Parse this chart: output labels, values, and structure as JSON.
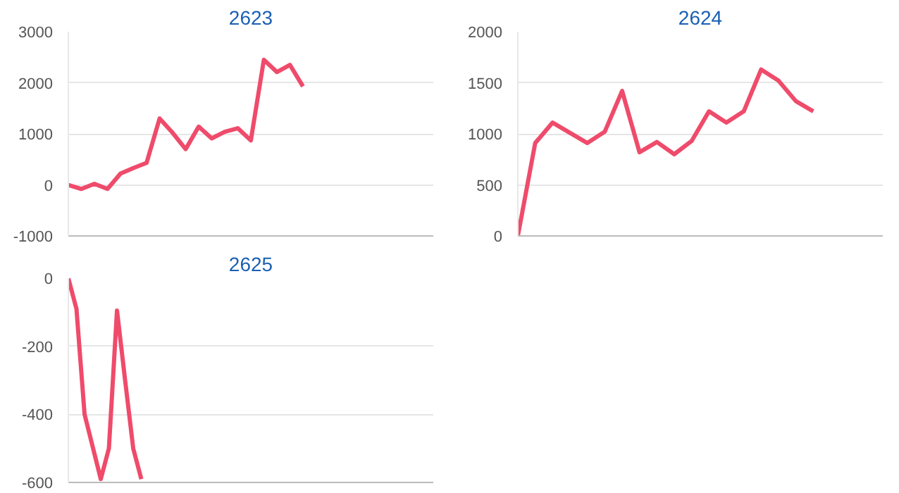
{
  "chart_data": [
    {
      "type": "line",
      "title": "2623",
      "categories": [
        null,
        null,
        null,
        null,
        null,
        null,
        null,
        null,
        null,
        null,
        null,
        null,
        null,
        null,
        null,
        null,
        null,
        null,
        null,
        null,
        null,
        null,
        null,
        null,
        null,
        null,
        null,
        null,
        null
      ],
      "series": [
        {
          "color": "#ef4b6b",
          "values": [
            0,
            -80,
            20,
            -80,
            220,
            330,
            430,
            1300,
            1020,
            700,
            1140,
            910,
            1040,
            1110,
            870,
            2450,
            2210,
            2350,
            1930,
            null,
            null,
            null,
            null,
            null,
            null,
            null,
            null,
            null,
            null
          ]
        }
      ],
      "ylim": [
        -1000,
        3000
      ],
      "yticks": [
        -1000,
        0,
        1000,
        2000,
        3000
      ],
      "grid": "y",
      "tick_labels": "y",
      "marker": "none",
      "line_style": "solid"
    },
    {
      "type": "line",
      "title": "2624",
      "categories": [
        null,
        null,
        null,
        null,
        null,
        null,
        null,
        null,
        null,
        null,
        null,
        null,
        null,
        null,
        null,
        null,
        null,
        null,
        null,
        null,
        null,
        null
      ],
      "series": [
        {
          "color": "#ef4b6b",
          "values": [
            0,
            910,
            1110,
            1010,
            910,
            1020,
            1420,
            820,
            920,
            800,
            930,
            1220,
            1110,
            1220,
            1630,
            1520,
            1320,
            1220,
            null,
            null,
            null,
            null
          ]
        }
      ],
      "ylim": [
        0,
        2000
      ],
      "yticks": [
        0,
        500,
        1000,
        1500,
        2000
      ],
      "grid": "y",
      "tick_labels": "y",
      "marker": "none",
      "line_style": "solid"
    },
    {
      "type": "line",
      "title": "2625",
      "categories": [
        null,
        null,
        null,
        null,
        null,
        null,
        null,
        null,
        null,
        null,
        null,
        null,
        null,
        null,
        null,
        null,
        null,
        null,
        null,
        null,
        null,
        null,
        null,
        null,
        null,
        null,
        null,
        null,
        null,
        null,
        null,
        null,
        null,
        null,
        null,
        null,
        null,
        null,
        null,
        null,
        null,
        null,
        null,
        null,
        null,
        null
      ],
      "series": [
        {
          "color": "#ef4b6b",
          "values": [
            0,
            -90,
            -400,
            -495,
            -590,
            -500,
            -95,
            -300,
            -500,
            -590,
            null,
            null,
            null,
            null,
            null,
            null,
            null,
            null,
            null,
            null,
            null,
            null,
            null,
            null,
            null,
            null,
            null,
            null,
            null,
            null,
            null,
            null,
            null,
            null,
            null,
            null,
            null,
            null,
            null,
            null,
            null,
            null,
            null,
            null,
            null,
            null
          ]
        }
      ],
      "ylim": [
        -600,
        0
      ],
      "yticks": [
        -600,
        -400,
        -200,
        0
      ],
      "grid": "y",
      "tick_labels": "y",
      "marker": "none",
      "line_style": "solid"
    }
  ]
}
